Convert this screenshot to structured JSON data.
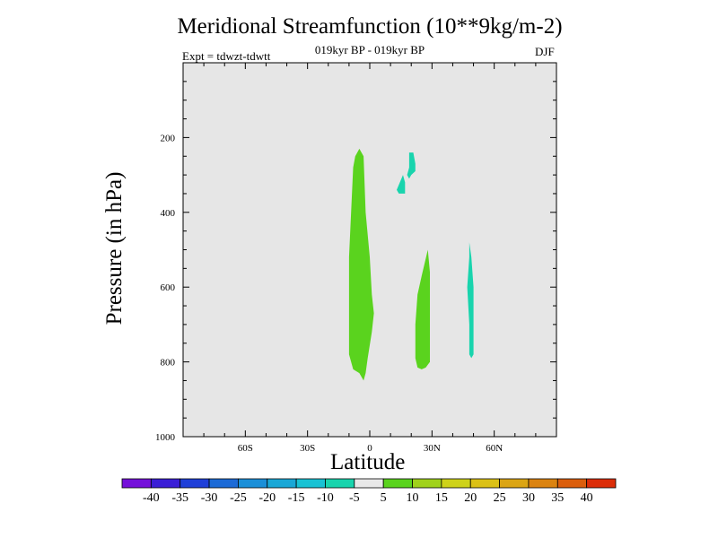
{
  "chart_data": {
    "type": "contour",
    "title": "Meridional Streamfunction (10**9kg/m-2)",
    "subtitle": "019kyr BP - 019kyr BP",
    "experiment": "Expt = tdwzt-tdwtt",
    "season": "DJF",
    "xlabel": "Latitude",
    "ylabel": "Pressure (in hPa)",
    "xlim": [
      -90,
      90
    ],
    "ylim": [
      1000,
      0
    ],
    "x_ticks": [
      {
        "value": -60,
        "label": "60S"
      },
      {
        "value": -30,
        "label": "30S"
      },
      {
        "value": 0,
        "label": "0"
      },
      {
        "value": 30,
        "label": "30N"
      },
      {
        "value": 60,
        "label": "60N"
      }
    ],
    "y_ticks": [
      {
        "value": 200,
        "label": "200"
      },
      {
        "value": 400,
        "label": "400"
      },
      {
        "value": 600,
        "label": "600"
      },
      {
        "value": 800,
        "label": "800"
      },
      {
        "value": 1000,
        "label": "1000"
      }
    ],
    "background_color": "#e6e6e6",
    "regions": [
      {
        "name": "positive-cell-equator",
        "level": "5 to 10",
        "color": "#5ad31e",
        "points": [
          [
            -5,
            230
          ],
          [
            -3,
            250
          ],
          [
            -2,
            400
          ],
          [
            0,
            520
          ],
          [
            1,
            620
          ],
          [
            2,
            670
          ],
          [
            1,
            720
          ],
          [
            -1,
            790
          ],
          [
            -2,
            830
          ],
          [
            -3,
            850
          ],
          [
            -5,
            830
          ],
          [
            -8,
            820
          ],
          [
            -10,
            780
          ],
          [
            -10,
            650
          ],
          [
            -10,
            520
          ],
          [
            -9,
            400
          ],
          [
            -8,
            280
          ],
          [
            -7,
            250
          ]
        ]
      },
      {
        "name": "positive-cell-25n",
        "level": "5 to 10",
        "color": "#5ad31e",
        "points": [
          [
            28,
            500
          ],
          [
            29,
            560
          ],
          [
            29,
            650
          ],
          [
            29,
            800
          ],
          [
            27,
            815
          ],
          [
            25,
            820
          ],
          [
            23,
            815
          ],
          [
            22,
            790
          ],
          [
            22,
            700
          ],
          [
            23,
            620
          ],
          [
            25,
            570
          ]
        ]
      },
      {
        "name": "negative-cell-20n-upper",
        "level": "-10 to -5",
        "color": "#19d4ad",
        "points": [
          [
            19,
            240
          ],
          [
            21,
            240
          ],
          [
            22,
            270
          ],
          [
            22,
            290
          ],
          [
            20,
            300
          ],
          [
            19,
            310
          ],
          [
            18,
            300
          ],
          [
            19,
            280
          ]
        ]
      },
      {
        "name": "negative-cell-16n",
        "level": "-10 to -5",
        "color": "#19d4ad",
        "points": [
          [
            16,
            300
          ],
          [
            17,
            320
          ],
          [
            17,
            350
          ],
          [
            14,
            350
          ],
          [
            13,
            340
          ]
        ]
      },
      {
        "name": "negative-cell-48n",
        "level": "-10 to -5",
        "color": "#19d4ad",
        "points": [
          [
            48,
            480
          ],
          [
            49,
            520
          ],
          [
            50,
            600
          ],
          [
            50,
            700
          ],
          [
            50,
            780
          ],
          [
            49,
            790
          ],
          [
            48,
            780
          ],
          [
            48,
            700
          ],
          [
            47,
            600
          ],
          [
            48,
            520
          ]
        ]
      }
    ],
    "colorbar": {
      "colors": [
        "#7510da",
        "#3a1ed6",
        "#1f3fd8",
        "#1c6ad6",
        "#1b8fd8",
        "#1aa7d6",
        "#19c2d4",
        "#19d4ad",
        "#e8e8e8",
        "#5ad31e",
        "#a0d21b",
        "#ced21a",
        "#dbc116",
        "#dba514",
        "#db8310",
        "#db5e0c",
        "#dc2d08"
      ],
      "labels": [
        "-40",
        "-35",
        "-30",
        "-25",
        "-20",
        "-15",
        "-10",
        "-5",
        "5",
        "10",
        "15",
        "20",
        "25",
        "30",
        "35",
        "40"
      ]
    }
  }
}
